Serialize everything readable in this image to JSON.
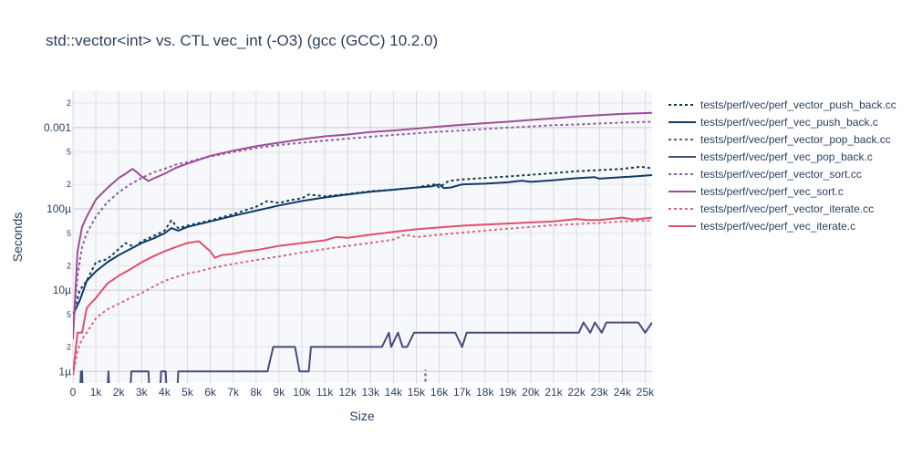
{
  "chart_data": {
    "type": "line",
    "title": "std::vector<int> vs. CTL vec_int (-O3) (gcc (GCC) 10.2.0)",
    "xlabel": "Size",
    "ylabel": "Seconds",
    "x_range": [
      0,
      25300
    ],
    "y_scale": "log",
    "y_range": [
      7.2e-07,
      0.0028
    ],
    "x_ticks": [
      {
        "v": 0,
        "label": "0"
      },
      {
        "v": 1000,
        "label": "1k"
      },
      {
        "v": 2000,
        "label": "2k"
      },
      {
        "v": 3000,
        "label": "3k"
      },
      {
        "v": 4000,
        "label": "4k"
      },
      {
        "v": 5000,
        "label": "5k"
      },
      {
        "v": 6000,
        "label": "6k"
      },
      {
        "v": 7000,
        "label": "7k"
      },
      {
        "v": 8000,
        "label": "8k"
      },
      {
        "v": 9000,
        "label": "9k"
      },
      {
        "v": 10000,
        "label": "10k"
      },
      {
        "v": 11000,
        "label": "11k"
      },
      {
        "v": 12000,
        "label": "12k"
      },
      {
        "v": 13000,
        "label": "13k"
      },
      {
        "v": 14000,
        "label": "14k"
      },
      {
        "v": 15000,
        "label": "15k"
      },
      {
        "v": 16000,
        "label": "16k"
      },
      {
        "v": 17000,
        "label": "17k"
      },
      {
        "v": 18000,
        "label": "18k"
      },
      {
        "v": 19000,
        "label": "19k"
      },
      {
        "v": 20000,
        "label": "20k"
      },
      {
        "v": 21000,
        "label": "21k"
      },
      {
        "v": 22000,
        "label": "22k"
      },
      {
        "v": 23000,
        "label": "23k"
      },
      {
        "v": 24000,
        "label": "24k"
      },
      {
        "v": 25000,
        "label": "25k"
      }
    ],
    "y_major_ticks": [
      {
        "v": 1e-06,
        "label": "1µ"
      },
      {
        "v": 1e-05,
        "label": "10µ"
      },
      {
        "v": 0.0001,
        "label": "100µ"
      },
      {
        "v": 0.001,
        "label": "0.001"
      }
    ],
    "y_minor_ticks": [
      {
        "v": 2e-06,
        "label": "2"
      },
      {
        "v": 5e-06,
        "label": "5"
      },
      {
        "v": 2e-05,
        "label": "2"
      },
      {
        "v": 5e-05,
        "label": "5"
      },
      {
        "v": 0.0002,
        "label": "2"
      },
      {
        "v": 0.0005,
        "label": "5"
      },
      {
        "v": 0.002,
        "label": "2"
      }
    ],
    "legend_position": "right",
    "series": [
      {
        "name": "tests/perf/vec/perf_vector_push_back.cc",
        "color": "#0d3b4f",
        "dash": "dot",
        "x": [
          0,
          300,
          600,
          1000,
          1500,
          2000,
          2300,
          2700,
          3000,
          3500,
          4000,
          4300,
          4600,
          5000,
          6000,
          7000,
          8000,
          8500,
          9000,
          9500,
          10000,
          10300,
          11000,
          12000,
          13000,
          14000,
          15000,
          15800,
          16000,
          16400,
          17000,
          18000,
          19000,
          20000,
          21000,
          22000,
          23000,
          24000,
          24800,
          25300
        ],
        "y": [
          5e-06,
          1e-05,
          1.3e-05,
          2.2e-05,
          2.4e-05,
          3.2e-05,
          3.8e-05,
          3.4e-05,
          4e-05,
          4.6e-05,
          5.4e-05,
          7.2e-05,
          5.8e-05,
          6.2e-05,
          7.2e-05,
          8.6e-05,
          0.000106,
          0.000125,
          0.000118,
          0.000128,
          0.000135,
          0.00015,
          0.000143,
          0.000152,
          0.000165,
          0.000172,
          0.000183,
          0.0002,
          0.000183,
          0.00022,
          0.00023,
          0.00024,
          0.00025,
          0.000262,
          0.000275,
          0.00029,
          0.0003,
          0.00031,
          0.00033,
          0.000315
        ]
      },
      {
        "name": "tests/perf/vec/perf_vec_push_back.c",
        "color": "#0d3b66",
        "dash": "solid",
        "x": [
          0,
          300,
          600,
          1000,
          1500,
          2000,
          2500,
          3000,
          3500,
          4000,
          4300,
          4600,
          5000,
          6000,
          7000,
          8000,
          9000,
          10000,
          11000,
          12000,
          13000,
          14000,
          15000,
          15700,
          16000,
          16200,
          16500,
          17000,
          18000,
          19000,
          19600,
          20000,
          21000,
          22000,
          22800,
          23000,
          24000,
          24500,
          25300
        ],
        "y": [
          5e-06,
          7.5e-06,
          1.3e-05,
          1.7e-05,
          2.2e-05,
          2.7e-05,
          3.2e-05,
          3.8e-05,
          4.3e-05,
          5e-05,
          5.8e-05,
          5.4e-05,
          6e-05,
          7e-05,
          8.2e-05,
          9.5e-05,
          0.00011,
          0.000125,
          0.000138,
          0.00015,
          0.000162,
          0.000172,
          0.000183,
          0.00019,
          0.0002,
          0.00018,
          0.000183,
          0.0002,
          0.000204,
          0.000212,
          0.000222,
          0.000215,
          0.000225,
          0.000238,
          0.000245,
          0.000235,
          0.000245,
          0.00025,
          0.00026
        ]
      },
      {
        "name": "tests/perf/vec/perf_vector_pop_back.cc",
        "color": "#5a5a8e",
        "dash": "dot",
        "x": [
          15400,
          15400
        ],
        "y": [
          7.5e-07,
          1.05e-06
        ]
      },
      {
        "name": "tests/perf/vec/perf_vec_pop_back.c",
        "color": "#434c7c",
        "dash": "solid",
        "x": [
          0,
          300,
          350,
          400,
          430,
          460,
          500,
          1500,
          1550,
          1600,
          2500,
          2550,
          3300,
          3350,
          3800,
          3850,
          4050,
          4100,
          4550,
          4600,
          5400,
          5450,
          8500,
          8750,
          9000,
          9200,
          9700,
          9900,
          10300,
          10400,
          13500,
          13800,
          13900,
          14200,
          14400,
          14600,
          14900,
          15100,
          16200,
          16700,
          17000,
          17200,
          20700,
          22100,
          22300,
          22600,
          22800,
          23100,
          23300,
          23400,
          24700,
          25000,
          25300
        ],
        "y": [
          5e-07,
          5e-07,
          1e-06,
          1e-06,
          5e-07,
          5e-07,
          5e-07,
          5e-07,
          1e-06,
          5e-07,
          5e-07,
          1e-06,
          1e-06,
          5e-07,
          5e-07,
          1e-06,
          1e-06,
          5e-07,
          5e-07,
          1e-06,
          1e-06,
          1e-06,
          1e-06,
          2e-06,
          2e-06,
          2e-06,
          2e-06,
          1e-06,
          1e-06,
          2e-06,
          2e-06,
          3e-06,
          2e-06,
          3e-06,
          2e-06,
          2e-06,
          3e-06,
          3e-06,
          3e-06,
          3e-06,
          2e-06,
          3e-06,
          3e-06,
          3e-06,
          4e-06,
          3e-06,
          4e-06,
          3e-06,
          4e-06,
          4e-06,
          4e-06,
          3e-06,
          4e-06
        ]
      },
      {
        "name": "tests/perf/vec/perf_vector_sort.cc",
        "color": "#8e5a9e",
        "dash": "dot",
        "x": [
          0,
          200,
          400,
          600,
          1000,
          1500,
          2000,
          2500,
          3000,
          3500,
          4000,
          4500,
          5000,
          5500,
          6000,
          7000,
          8000,
          9000,
          10000,
          11000,
          12000,
          13000,
          14000,
          15000,
          16000,
          17000,
          18000,
          19000,
          20000,
          21000,
          22000,
          23000,
          24000,
          25300
        ],
        "y": [
          3.2e-06,
          1.5e-05,
          3.4e-05,
          5e-05,
          8e-05,
          0.00012,
          0.00016,
          0.0002,
          0.00024,
          0.00028,
          0.00031,
          0.00035,
          0.000375,
          0.00041,
          0.00044,
          0.0005,
          0.00056,
          0.00061,
          0.00065,
          0.00069,
          0.00073,
          0.00077,
          0.00081,
          0.00085,
          0.00089,
          0.00092,
          0.00096,
          0.001,
          0.00103,
          0.00107,
          0.00109,
          0.00112,
          0.00115,
          0.00118
        ]
      },
      {
        "name": "tests/perf/vec/perf_vec_sort.c",
        "color": "#9c4e97",
        "dash": "solid",
        "x": [
          0,
          200,
          400,
          600,
          1000,
          1500,
          2000,
          2300,
          2600,
          2800,
          3000,
          3300,
          3500,
          4000,
          4500,
          5000,
          5500,
          6000,
          7000,
          8000,
          9000,
          10000,
          11000,
          12000,
          13000,
          14000,
          15000,
          16000,
          17000,
          18000,
          19000,
          20000,
          21000,
          22000,
          23000,
          24000,
          25300
        ],
        "y": [
          2.5e-06,
          3e-05,
          6e-05,
          8e-05,
          0.00013,
          0.00018,
          0.00024,
          0.00027,
          0.00031,
          0.00028,
          0.00025,
          0.00022,
          0.000235,
          0.00027,
          0.00032,
          0.00036,
          0.0004,
          0.00045,
          0.00052,
          0.00059,
          0.00065,
          0.00072,
          0.00078,
          0.00082,
          0.00088,
          0.00092,
          0.00097,
          0.00103,
          0.00108,
          0.00113,
          0.00118,
          0.00124,
          0.0013,
          0.00137,
          0.00142,
          0.00147,
          0.00152
        ]
      },
      {
        "name": "tests/perf/vec/perf_vector_iterate.cc",
        "color": "#d6667d",
        "dash": "dot",
        "x": [
          0,
          200,
          400,
          600,
          1000,
          1500,
          2000,
          2500,
          3000,
          3500,
          4000,
          4500,
          5000,
          5500,
          6000,
          7000,
          8000,
          9000,
          10000,
          11000,
          12000,
          13000,
          14000,
          14500,
          15000,
          16000,
          17000,
          18000,
          19000,
          20000,
          21000,
          22000,
          23000,
          24000,
          25300
        ],
        "y": [
          9e-07,
          1.8e-06,
          2.5e-06,
          3e-06,
          4.5e-06,
          5.8e-06,
          6.8e-06,
          8e-06,
          9.2e-06,
          1.1e-05,
          1.3e-05,
          1.45e-05,
          1.6e-05,
          1.7e-05,
          1.85e-05,
          2.1e-05,
          2.35e-05,
          2.6e-05,
          2.9e-05,
          3.2e-05,
          3.5e-05,
          3.8e-05,
          4.2e-05,
          4.8e-05,
          4.5e-05,
          4.8e-05,
          5.1e-05,
          5.4e-05,
          5.7e-05,
          6e-05,
          6.3e-05,
          6.5e-05,
          6.7e-05,
          7e-05,
          7.2e-05
        ]
      },
      {
        "name": "tests/perf/vec/perf_vec_iterate.c",
        "color": "#e0506e",
        "dash": "solid",
        "x": [
          0,
          200,
          400,
          600,
          800,
          1000,
          1500,
          2000,
          2500,
          3000,
          3500,
          4000,
          4500,
          5000,
          5500,
          6000,
          6200,
          6500,
          7000,
          7500,
          8000,
          9000,
          10000,
          11000,
          11500,
          12000,
          13000,
          14000,
          15000,
          16000,
          17000,
          18000,
          19000,
          20000,
          21000,
          22000,
          22500,
          23000,
          24000,
          24500,
          25300
        ],
        "y": [
          9e-07,
          3e-06,
          3e-06,
          6e-06,
          7e-06,
          8e-06,
          1.2e-05,
          1.5e-05,
          1.8e-05,
          2.2e-05,
          2.6e-05,
          3e-05,
          3.4e-05,
          3.8e-05,
          4e-05,
          3e-05,
          2.5e-05,
          2.7e-05,
          2.8e-05,
          3e-05,
          3.1e-05,
          3.5e-05,
          3.8e-05,
          4.1e-05,
          4.5e-05,
          4.4e-05,
          4.8e-05,
          5.2e-05,
          5.6e-05,
          5.9e-05,
          6.2e-05,
          6.4e-05,
          6.6e-05,
          6.8e-05,
          7e-05,
          7.5e-05,
          7.3e-05,
          7.3e-05,
          7.8e-05,
          7.4e-05,
          7.8e-05
        ]
      }
    ]
  }
}
